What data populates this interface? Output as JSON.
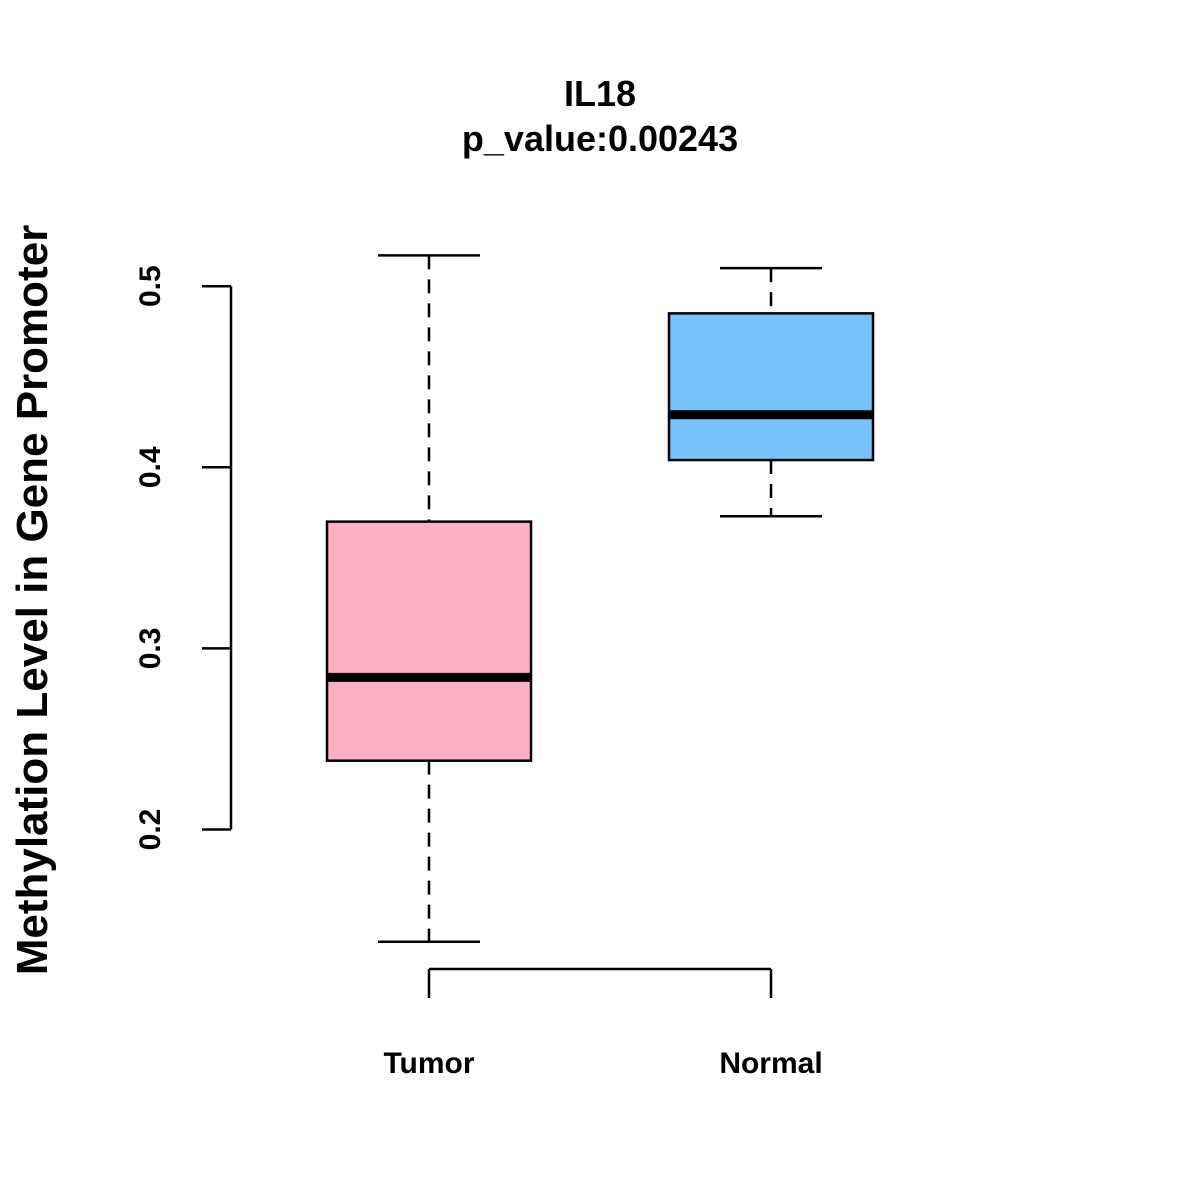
{
  "chart_data": {
    "type": "boxplot",
    "title": "IL18",
    "subtitle": "p_value:0.00243",
    "xlabel": "",
    "ylabel": "Methylation Level in Gene Promoter",
    "ylim": [
      0.1,
      0.55
    ],
    "y_ticks": [
      0.2,
      0.3,
      0.4,
      0.5
    ],
    "y_tick_labels": [
      "0.2",
      "0.3",
      "0.4",
      "0.5"
    ],
    "categories": [
      "Tumor",
      "Normal"
    ],
    "boxes": [
      {
        "name": "Tumor",
        "min": 0.138,
        "q1": 0.238,
        "median": 0.284,
        "q3": 0.37,
        "max": 0.517,
        "color": "#FBB1C3"
      },
      {
        "name": "Normal",
        "min": 0.373,
        "q1": 0.404,
        "median": 0.429,
        "q3": 0.485,
        "max": 0.51,
        "color": "#77C2F8"
      }
    ],
    "grid": false,
    "legend": "none"
  }
}
